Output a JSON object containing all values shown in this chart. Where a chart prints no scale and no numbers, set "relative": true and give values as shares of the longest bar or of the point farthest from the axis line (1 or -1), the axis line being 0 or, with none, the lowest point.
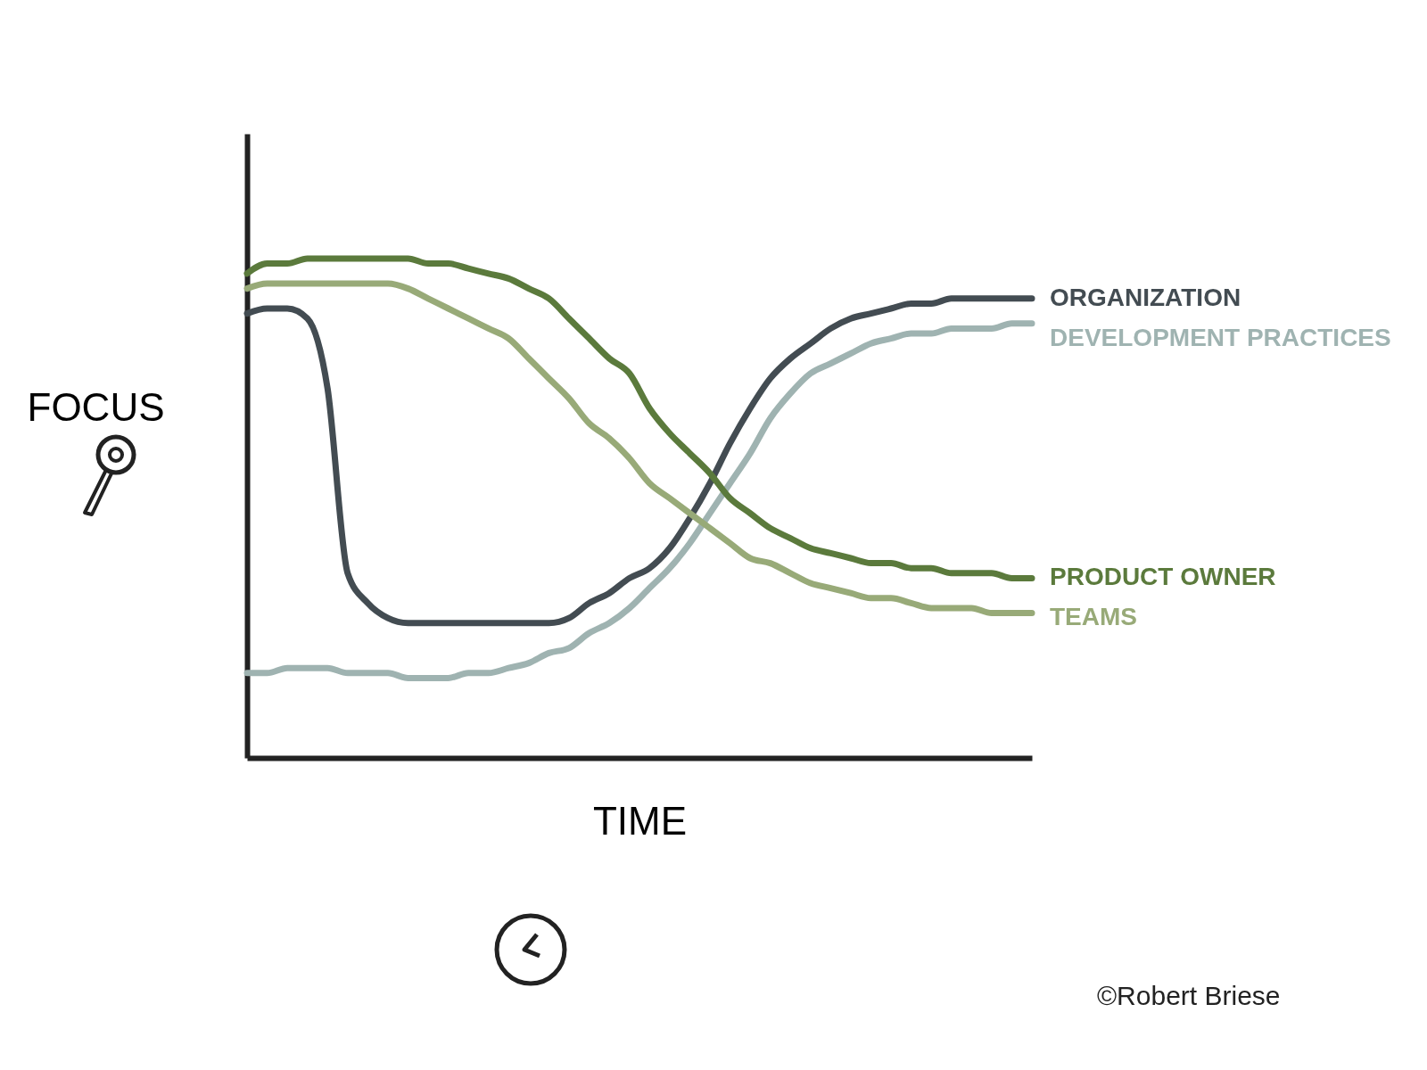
{
  "chart_data": {
    "type": "line",
    "relative": true,
    "xlabel": "TIME",
    "ylabel": "FOCUS",
    "legend": false,
    "grid": false,
    "line_style": "solid",
    "categories": [
      null,
      null,
      null,
      null,
      null,
      null,
      null,
      null,
      null,
      null,
      null,
      null,
      null,
      null,
      null,
      null,
      null,
      null,
      null,
      null,
      null,
      null,
      null,
      null,
      null,
      null,
      null,
      null,
      null,
      null,
      null,
      null,
      null,
      null,
      null,
      null,
      null,
      null,
      null,
      null
    ],
    "series": [
      {
        "name": "ORGANIZATION",
        "color": "#434c52",
        "values": [
          0.89,
          0.9,
          0.9,
          0.88,
          0.74,
          0.37,
          0.31,
          0.28,
          0.27,
          0.27,
          0.27,
          0.27,
          0.27,
          0.27,
          0.27,
          0.27,
          0.28,
          0.31,
          0.33,
          0.36,
          0.38,
          0.42,
          0.48,
          0.55,
          0.63,
          0.7,
          0.76,
          0.8,
          0.83,
          0.86,
          0.88,
          0.89,
          0.9,
          0.91,
          0.91,
          0.92,
          0.92,
          0.92,
          0.92,
          0.92
        ]
      },
      {
        "name": "DEVELOPMENT PRACTICES",
        "color": "#9fb3b1",
        "values": [
          0.17,
          0.17,
          0.18,
          0.18,
          0.18,
          0.17,
          0.17,
          0.17,
          0.16,
          0.16,
          0.16,
          0.17,
          0.17,
          0.18,
          0.19,
          0.21,
          0.22,
          0.25,
          0.27,
          0.3,
          0.34,
          0.38,
          0.43,
          0.49,
          0.55,
          0.61,
          0.68,
          0.73,
          0.77,
          0.79,
          0.81,
          0.83,
          0.84,
          0.85,
          0.85,
          0.86,
          0.86,
          0.86,
          0.87,
          0.87
        ]
      },
      {
        "name": "PRODUCT OWNER",
        "color": "#5b7a3c",
        "values": [
          0.97,
          0.99,
          0.99,
          1.0,
          1.0,
          1.0,
          1.0,
          1.0,
          1.0,
          0.99,
          0.99,
          0.98,
          0.97,
          0.96,
          0.94,
          0.92,
          0.88,
          0.84,
          0.8,
          0.77,
          0.7,
          0.65,
          0.61,
          0.57,
          0.52,
          0.49,
          0.46,
          0.44,
          0.42,
          0.41,
          0.4,
          0.39,
          0.39,
          0.38,
          0.38,
          0.37,
          0.37,
          0.37,
          0.36,
          0.36
        ]
      },
      {
        "name": "TEAMS",
        "color": "#98aa78",
        "values": [
          0.94,
          0.95,
          0.95,
          0.95,
          0.95,
          0.95,
          0.95,
          0.95,
          0.94,
          0.92,
          0.9,
          0.88,
          0.86,
          0.84,
          0.8,
          0.76,
          0.72,
          0.67,
          0.64,
          0.6,
          0.55,
          0.52,
          0.49,
          0.46,
          0.43,
          0.4,
          0.39,
          0.37,
          0.35,
          0.34,
          0.33,
          0.32,
          0.32,
          0.31,
          0.3,
          0.3,
          0.3,
          0.29,
          0.29,
          0.29
        ]
      }
    ],
    "annotations": [
      "©Robert Briese"
    ]
  }
}
